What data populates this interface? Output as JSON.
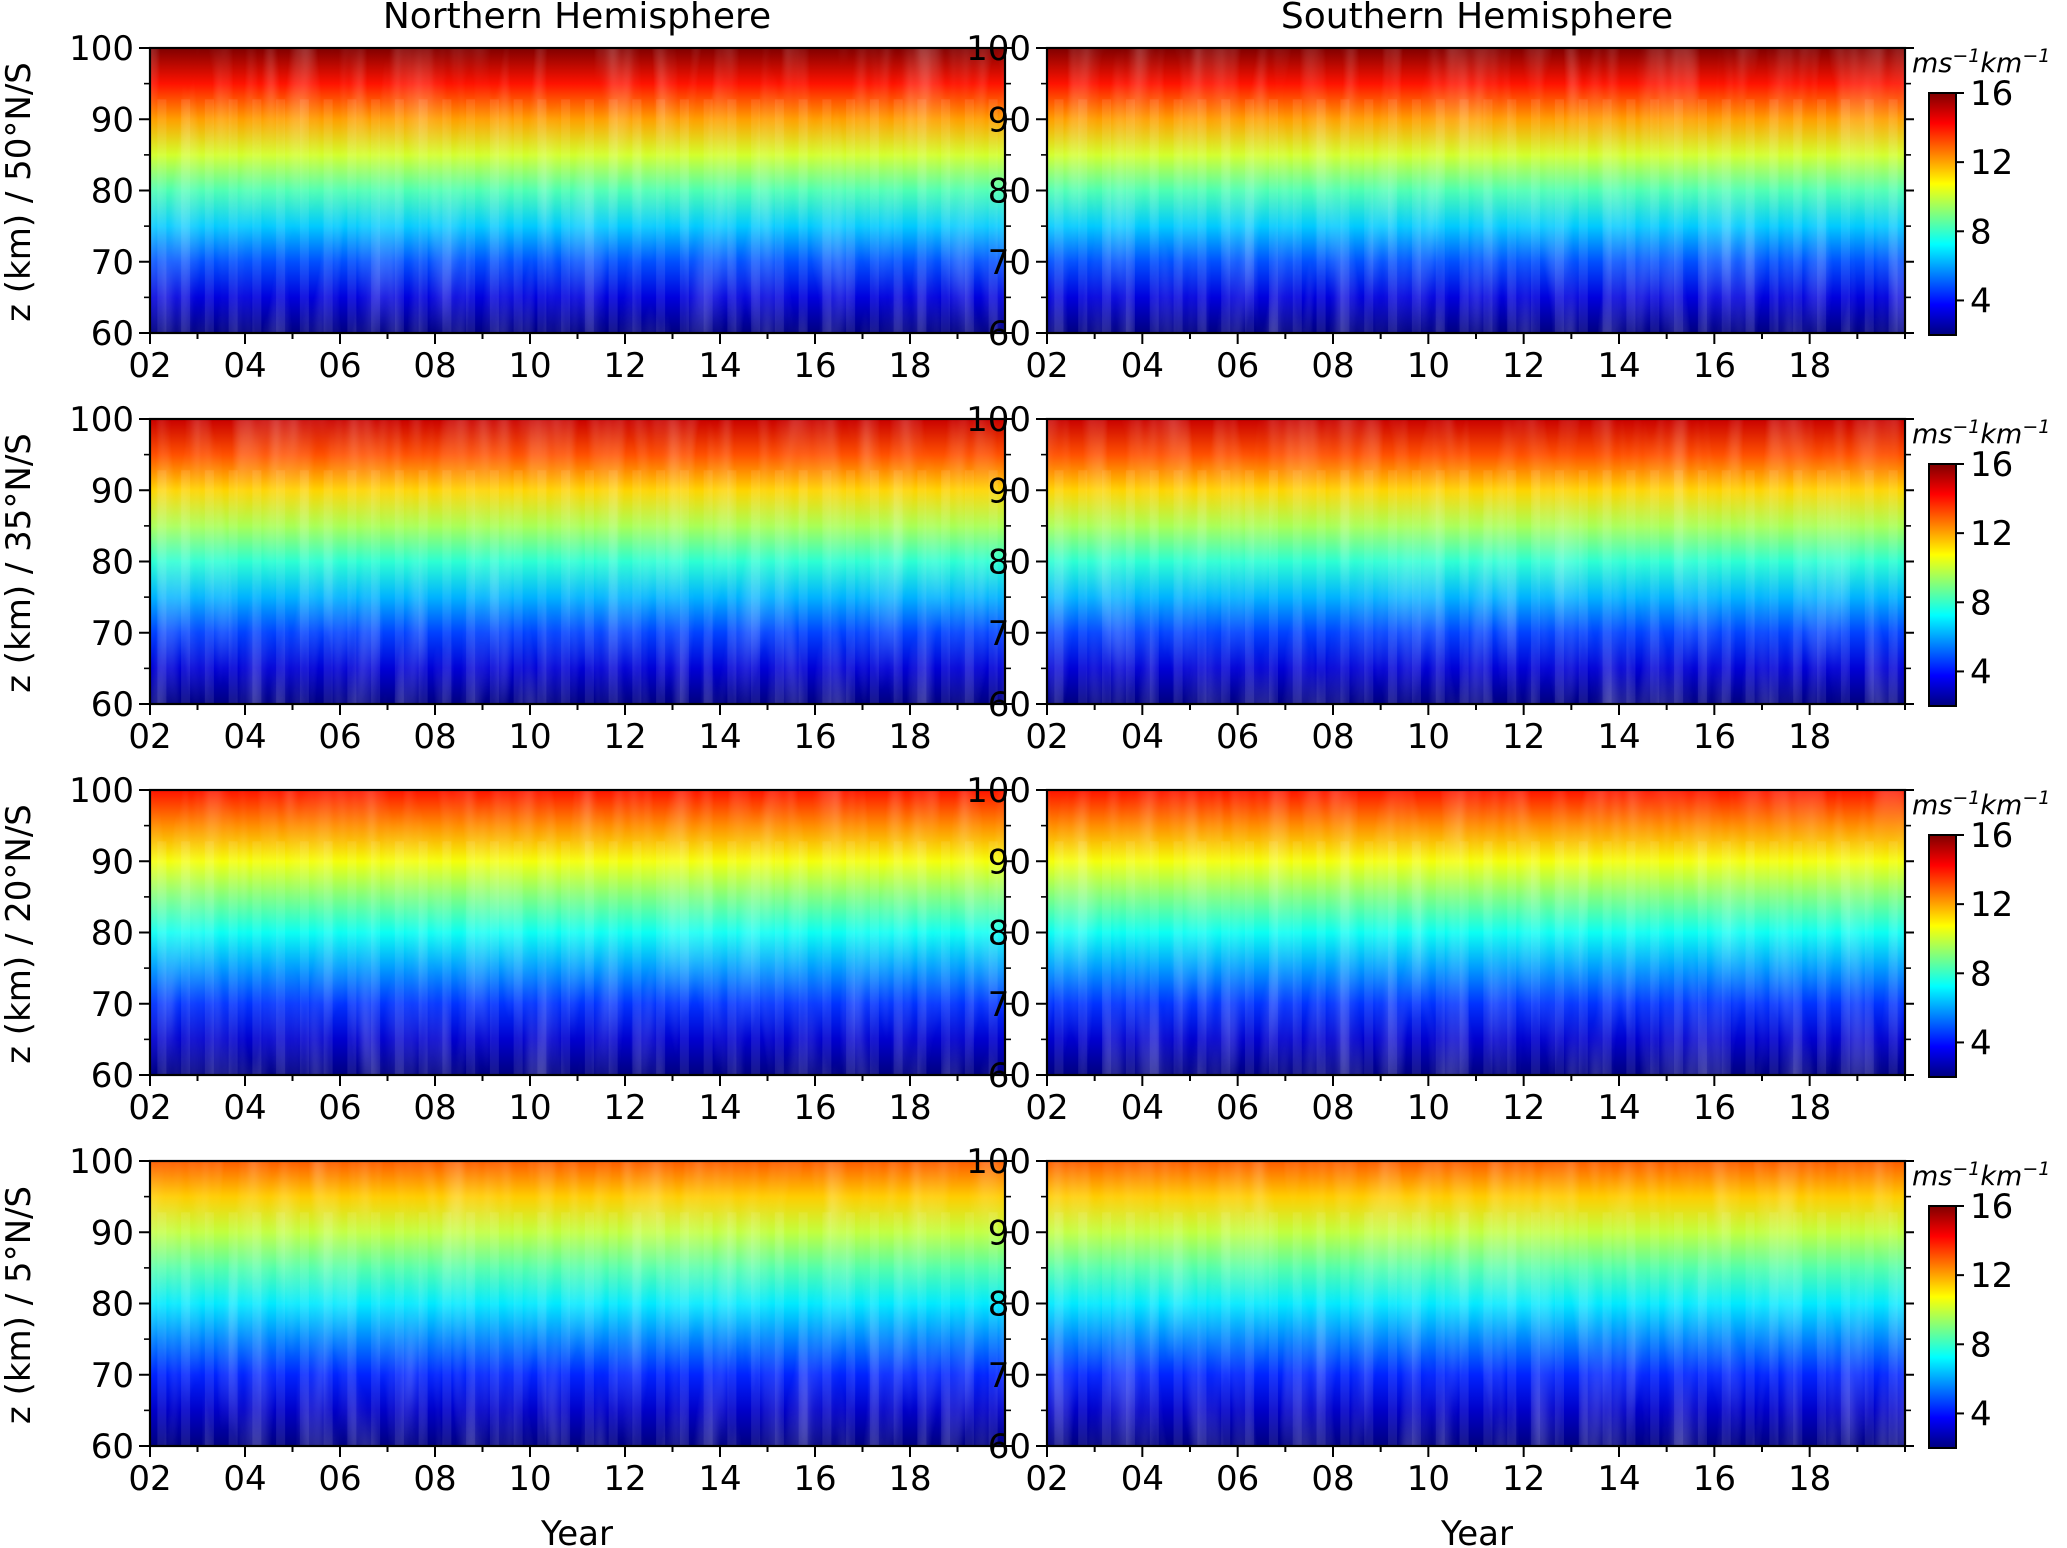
{
  "figure": {
    "columns": [
      {
        "title": "Northern Hemisphere",
        "xlabel": "Year"
      },
      {
        "title": "Southern Hemisphere",
        "xlabel": "Year"
      }
    ],
    "rows": [
      {
        "ylabel": "z (km) / 50°N/S"
      },
      {
        "ylabel": "z (km) / 35°N/S"
      },
      {
        "ylabel": "z (km) / 20°N/S"
      },
      {
        "ylabel": "z (km) / 5°N/S"
      }
    ],
    "colorbar": {
      "unit_base": "ms",
      "unit_exp1": "−1",
      "unit_mid": "km",
      "unit_exp2": "−1",
      "ticks": [
        "4",
        "8",
        "12",
        "16"
      ],
      "colormap": "jet",
      "colors": [
        "#00007f",
        "#0000ff",
        "#007fff",
        "#00ffff",
        "#7fff7f",
        "#ffff00",
        "#ff7f00",
        "#ff0000",
        "#7f0000"
      ]
    }
  },
  "chart_data": {
    "type": "heatmap",
    "colormap": "jet",
    "x_tick_labels": [
      "02",
      "04",
      "06",
      "08",
      "10",
      "12",
      "14",
      "16",
      "18"
    ],
    "y_tick_labels": [
      "60",
      "70",
      "80",
      "90",
      "100"
    ],
    "xlim": [
      2002,
      2020
    ],
    "ylim": [
      60,
      100
    ],
    "clim": [
      2,
      16
    ],
    "colorbar_ticks": [
      4,
      8,
      12,
      16
    ],
    "panels": [
      {
        "hemisphere": "Northern Hemisphere",
        "latitude": "50°N/S",
        "value_range": [
          2,
          16
        ]
      },
      {
        "hemisphere": "Southern Hemisphere",
        "latitude": "50°N/S",
        "value_range": [
          2,
          16
        ]
      },
      {
        "hemisphere": "Northern Hemisphere",
        "latitude": "35°N/S",
        "value_range": [
          2,
          15
        ]
      },
      {
        "hemisphere": "Southern Hemisphere",
        "latitude": "35°N/S",
        "value_range": [
          2,
          15
        ]
      },
      {
        "hemisphere": "Northern Hemisphere",
        "latitude": "20°N/S",
        "value_range": [
          2,
          14
        ]
      },
      {
        "hemisphere": "Southern Hemisphere",
        "latitude": "20°N/S",
        "value_range": [
          2,
          14
        ]
      },
      {
        "hemisphere": "Northern Hemisphere",
        "latitude": "5°N/S",
        "value_range": [
          2,
          13
        ]
      },
      {
        "hemisphere": "Southern Hemisphere",
        "latitude": "5°N/S",
        "value_range": [
          2,
          13
        ]
      }
    ]
  }
}
